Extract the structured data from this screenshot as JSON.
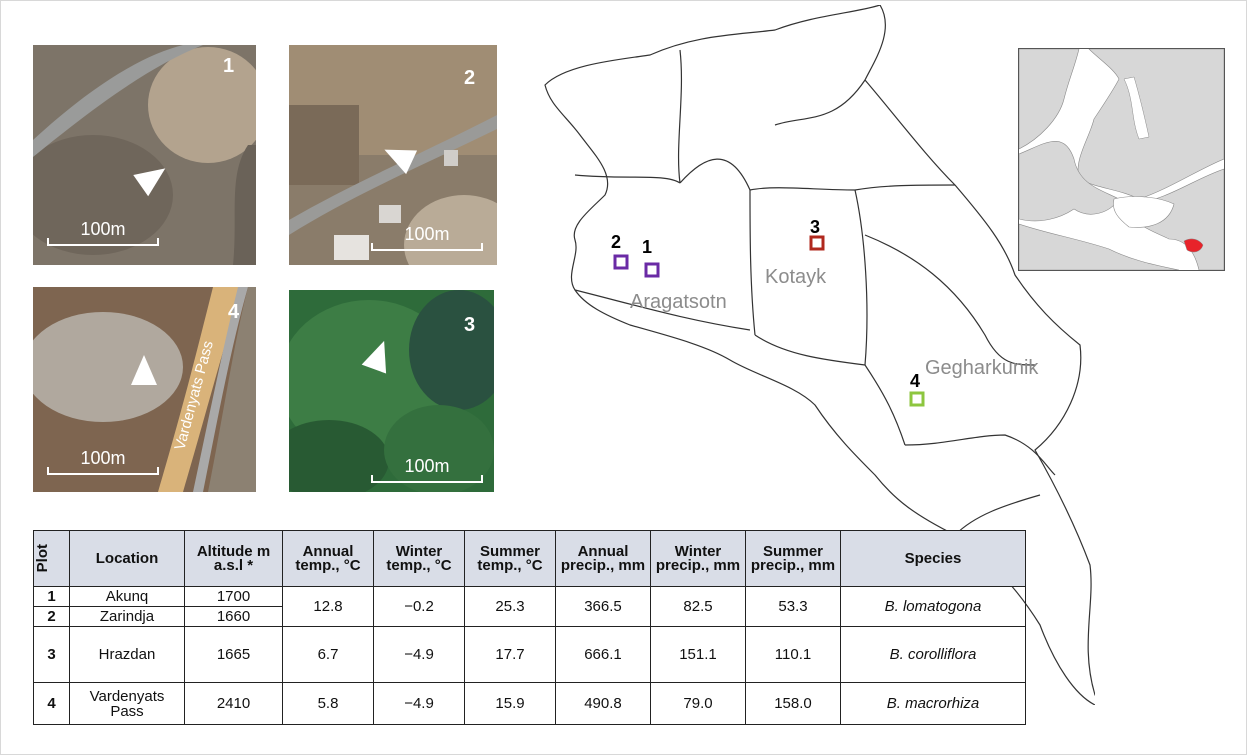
{
  "photos": [
    {
      "number": "1",
      "scale": "100m"
    },
    {
      "number": "2",
      "scale": "100m"
    },
    {
      "number": "4",
      "scale": "100m",
      "road_label": "Vardenyats Pass"
    },
    {
      "number": "3",
      "scale": "100m"
    }
  ],
  "map": {
    "regions": [
      "Aragatsotn",
      "Kotayk",
      "Gegharkunik"
    ],
    "sites": [
      {
        "number": "1",
        "color": "#6a2aa5"
      },
      {
        "number": "2",
        "color": "#6a2aa5"
      },
      {
        "number": "3",
        "color": "#b0281e"
      },
      {
        "number": "4",
        "color": "#8dc63f"
      }
    ],
    "inset_highlight_color": "#e8232a"
  },
  "table": {
    "headers": {
      "plot": "Plot",
      "location": "Location",
      "altitude": "Altitude m a.s.l *",
      "annual_temp": "Annual temp., °C",
      "winter_temp": "Winter temp., °C",
      "summer_temp": "Summer temp., °C",
      "annual_precip": "Annual precip., mm",
      "winter_precip": "Winter precip., mm",
      "summer_precip": "Summer precip., mm",
      "species": "Species"
    },
    "rows": [
      {
        "plot": "1",
        "location": "Akunq",
        "altitude": "1700"
      },
      {
        "plot": "2",
        "location": "Zarindja",
        "altitude": "1660"
      },
      {
        "plot": "3",
        "location": "Hrazdan",
        "altitude": "1665"
      },
      {
        "plot": "4",
        "location": "Vardenyats Pass",
        "altitude": "2410"
      }
    ],
    "groups": [
      {
        "annual_temp": "12.8",
        "winter_temp": "−0.2",
        "summer_temp": "25.3",
        "annual_precip": "366.5",
        "winter_precip": "82.5",
        "summer_precip": "53.3",
        "species": "B. lomatogona"
      },
      {
        "annual_temp": "6.7",
        "winter_temp": "−4.9",
        "summer_temp": "17.7",
        "annual_precip": "666.1",
        "winter_precip": "151.1",
        "summer_precip": "110.1",
        "species": "B. corolliflora"
      },
      {
        "annual_temp": "5.8",
        "winter_temp": "−4.9",
        "summer_temp": "15.9",
        "annual_precip": "490.8",
        "winter_precip": "79.0",
        "summer_precip": "158.0",
        "species": "B. macrorhiza"
      }
    ]
  }
}
